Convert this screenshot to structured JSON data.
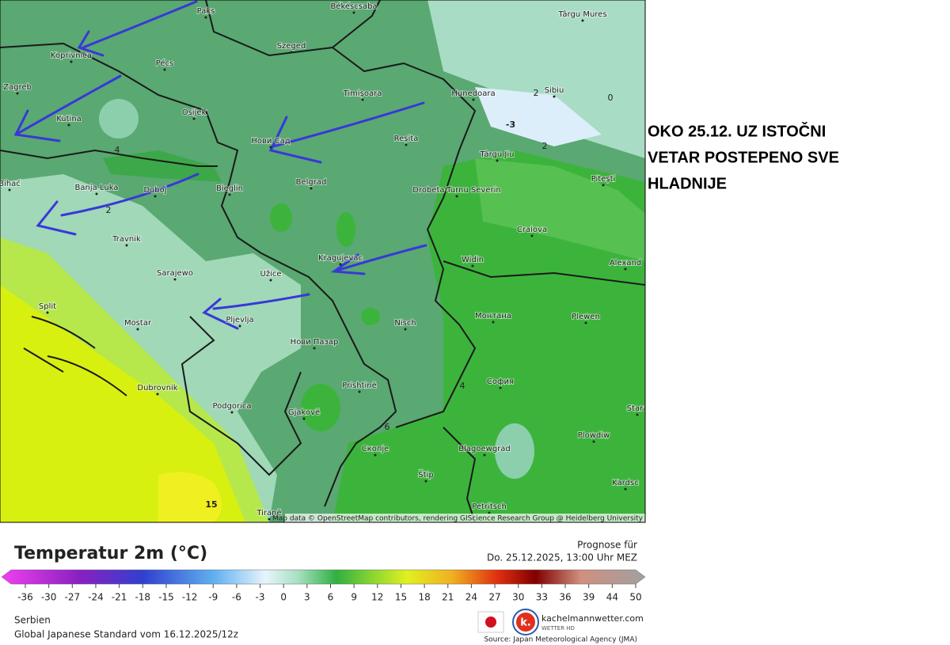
{
  "map": {
    "cities": [
      "Paks",
      "Békéscsaba",
      "Târgu Mures",
      "Koprivnica",
      "Pécs",
      "Szeged",
      "Zagreb",
      "Timișoara",
      "Hunedoara",
      "Sibiu",
      "Osijek",
      "Kutina",
      "Нови Сад",
      "Reșita",
      "Târgu Jiu",
      "Pitești",
      "Bihać",
      "Banja Luka",
      "Doboj",
      "Bieglin",
      "Belgrad",
      "Drobeta-Turnu Severin",
      "Craiova",
      "Travnik",
      "Kragujevac",
      "Widin",
      "Alexand",
      "Sarajewo",
      "Užice",
      "Split",
      "Mostar",
      "Pljevlja",
      "Nisch",
      "Монтана",
      "Plewen",
      "Нови Пазар",
      "Prishtinë",
      "София",
      "Dubrovnik",
      "Podgorica",
      "Gjakovë",
      "Stara",
      "Plowdiw",
      "Скопје",
      "Blagoewgrad",
      "Štip",
      "Kardsc",
      "Tiranë",
      "Petritsch"
    ],
    "contour_labels": [
      "4",
      "2",
      "2",
      "0",
      "-3",
      "2",
      "4",
      "6",
      "15"
    ],
    "attribution": "Map data © OpenStreetMap contributors, rendering GIScience Research Group @ Heidelberg University"
  },
  "annotation": {
    "lines": [
      "OKO 25.12.  UZ  ISTOČNI",
      "VETAR POSTEPENO SVE",
      "HLADNIJE"
    ]
  },
  "legend": {
    "title": "Temperatur 2m (°C)",
    "forecast_label": "Prognose für",
    "forecast_time": "Do. 25.12.2025, 13:00 Uhr MEZ",
    "ticks": [
      -36,
      -30,
      -27,
      -24,
      -21,
      -18,
      -15,
      -12,
      -9,
      -6,
      -3,
      0,
      3,
      6,
      9,
      12,
      15,
      18,
      21,
      24,
      27,
      30,
      33,
      36,
      39,
      44,
      50
    ]
  },
  "footer": {
    "region": "Serbien",
    "model": "Global Japanese Standard vom  16.12.2025/12z",
    "logo_letter": "k.",
    "brand": "kachelmannwetter.com",
    "brand_sub": "WETTER HD",
    "source": "Source: Japan Meteorological Agency (JMA)"
  }
}
